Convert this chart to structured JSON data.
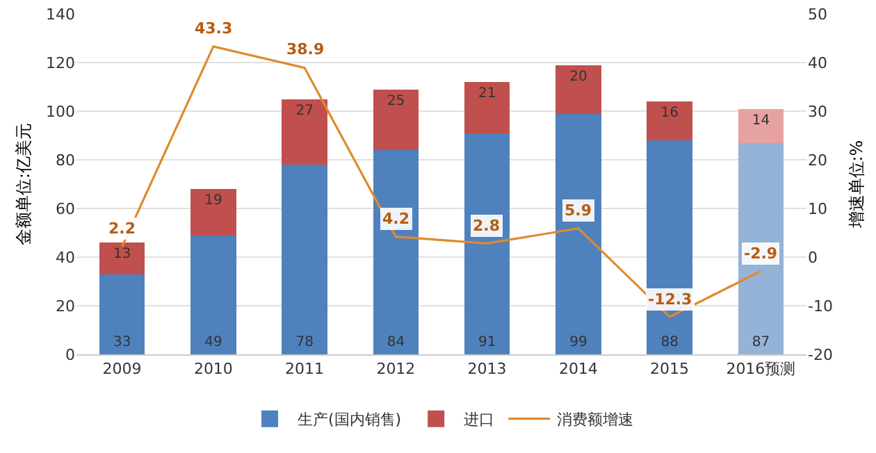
{
  "chart_data": {
    "type": "bar",
    "stacked": true,
    "categories": [
      "2009",
      "2010",
      "2011",
      "2012",
      "2013",
      "2014",
      "2015",
      "2016预测"
    ],
    "series": [
      {
        "name": "生产(国内销售)",
        "colors": [
          "#4f81bd",
          "#4f81bd",
          "#4f81bd",
          "#4f81bd",
          "#4f81bd",
          "#4f81bd",
          "#4f81bd",
          "#95b3d7"
        ],
        "values": [
          33,
          49,
          78,
          84,
          91,
          99,
          88,
          87
        ]
      },
      {
        "name": "进口",
        "colors": [
          "#c0504d",
          "#c0504d",
          "#c0504d",
          "#c0504d",
          "#c0504d",
          "#c0504d",
          "#c0504d",
          "#e6a2a0"
        ],
        "values": [
          13,
          19,
          27,
          25,
          21,
          20,
          16,
          14
        ]
      },
      {
        "name": "消费额增速",
        "type": "line",
        "axis": "y2",
        "color": "#e08a2e",
        "values": [
          2.2,
          43.3,
          38.9,
          4.2,
          2.8,
          5.9,
          -12.3,
          -2.9
        ]
      }
    ],
    "ylabel": "金额单位:亿美元",
    "y2label": "增速单位:%",
    "ylim": [
      0,
      140
    ],
    "yticks": [
      0,
      20,
      40,
      60,
      80,
      100,
      120,
      140
    ],
    "y2lim": [
      -20,
      50
    ],
    "y2ticks": [
      -20,
      -10,
      0,
      10,
      20,
      30,
      40,
      50
    ],
    "data_labels": true,
    "grid": "y",
    "legend": "bottom",
    "marker": "none"
  }
}
